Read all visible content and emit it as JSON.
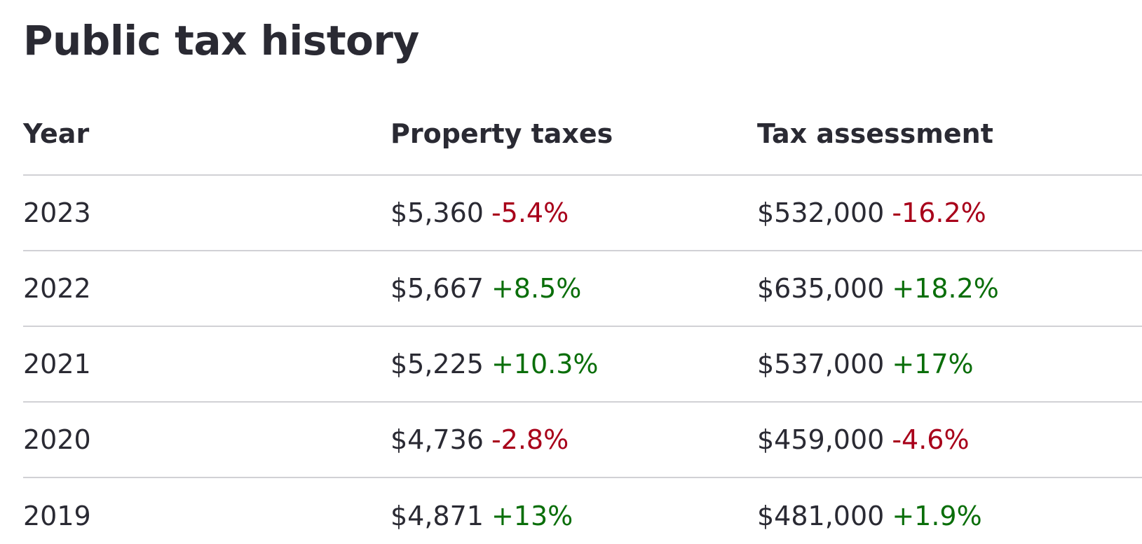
{
  "title": "Public tax history",
  "colors": {
    "text": "#2a2a33",
    "increase": "#0a6e0a",
    "decrease": "#a8001a",
    "divider": "#d1d1d5"
  },
  "table": {
    "headers": [
      "Year",
      "Property taxes",
      "Tax assessment"
    ],
    "rows": [
      {
        "year": "2023",
        "tax": "$5,360",
        "tax_change": "-5.4%",
        "tax_dir": "down",
        "assessment": "$532,000",
        "assessment_change": "-16.2%",
        "assessment_dir": "down"
      },
      {
        "year": "2022",
        "tax": "$5,667",
        "tax_change": "+8.5%",
        "tax_dir": "up",
        "assessment": "$635,000",
        "assessment_change": "+18.2%",
        "assessment_dir": "up"
      },
      {
        "year": "2021",
        "tax": "$5,225",
        "tax_change": "+10.3%",
        "tax_dir": "up",
        "assessment": "$537,000",
        "assessment_change": "+17%",
        "assessment_dir": "up"
      },
      {
        "year": "2020",
        "tax": "$4,736",
        "tax_change": "-2.8%",
        "tax_dir": "down",
        "assessment": "$459,000",
        "assessment_change": "-4.6%",
        "assessment_dir": "down"
      },
      {
        "year": "2019",
        "tax": "$4,871",
        "tax_change": "+13%",
        "tax_dir": "up",
        "assessment": "$481,000",
        "assessment_change": "+1.9%",
        "assessment_dir": "up"
      }
    ]
  }
}
